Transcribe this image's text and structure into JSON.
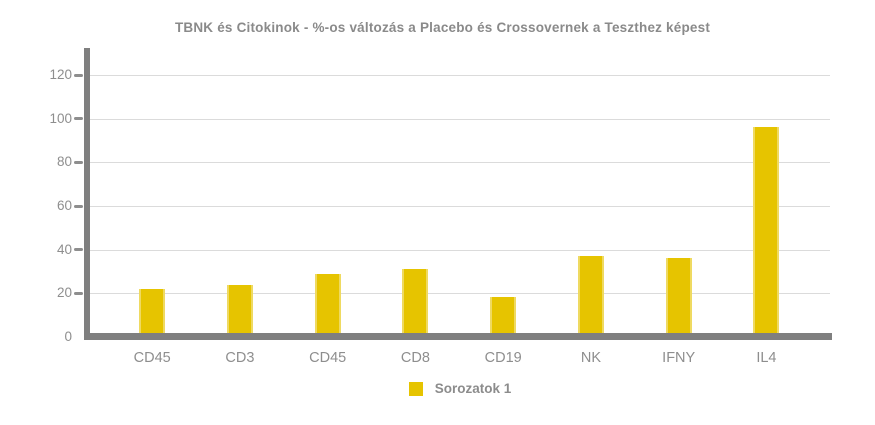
{
  "chart_data": {
    "type": "bar",
    "title": "TBNK és Citokinok - %-os változás a Placebo és Crossovernek a Teszthez képest",
    "categories": [
      "CD45",
      "CD3",
      "CD45",
      "CD8",
      "CD19",
      "NK",
      "IFNY",
      "IL4"
    ],
    "series": [
      {
        "name": "Sorozatok 1",
        "values": [
          22,
          24,
          29,
          31,
          18.5,
          37,
          36,
          96
        ]
      }
    ],
    "xlabel": "",
    "ylabel": "",
    "ylim": [
      0,
      132
    ],
    "yticks": [
      0,
      20,
      40,
      60,
      80,
      100,
      120
    ],
    "grid": true,
    "legend_position": "bottom-center",
    "colors": {
      "bar": "#e6c400",
      "axis": "#7f7f7f",
      "gridline": "#dbdbdb",
      "text": "#8e8e8e",
      "title": "#8a8a8a",
      "background": "#ffffff"
    }
  }
}
